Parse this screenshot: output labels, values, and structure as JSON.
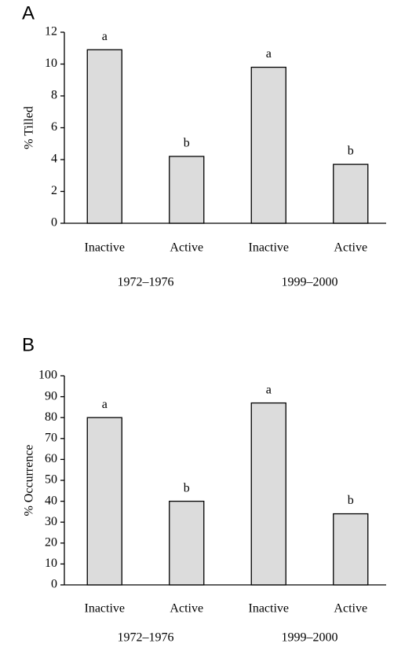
{
  "chart_data": [
    {
      "type": "bar",
      "panel": "A",
      "ylabel": "% Tilled",
      "categories": [
        "Inactive",
        "Active",
        "Inactive",
        "Active"
      ],
      "groups": [
        "1972–1976",
        "1999–2000"
      ],
      "values": [
        10.9,
        4.2,
        9.8,
        3.7
      ],
      "bar_labels": [
        "a",
        "b",
        "a",
        "b"
      ],
      "color": "#dcdcdc",
      "ylim": [
        0,
        12
      ],
      "yticks": [
        0,
        2,
        4,
        6,
        8,
        10,
        12
      ],
      "grid": false
    },
    {
      "type": "bar",
      "panel": "B",
      "ylabel": "% Occurrence",
      "categories": [
        "Inactive",
        "Active",
        "Inactive",
        "Active"
      ],
      "groups": [
        "1972–1976",
        "1999–2000"
      ],
      "values": [
        80,
        40,
        87,
        34
      ],
      "bar_labels": [
        "a",
        "b",
        "a",
        "b"
      ],
      "color": "#dcdcdc",
      "ylim": [
        0,
        100
      ],
      "yticks": [
        0,
        10,
        20,
        30,
        40,
        50,
        60,
        70,
        80,
        90,
        100
      ],
      "grid": false
    }
  ]
}
